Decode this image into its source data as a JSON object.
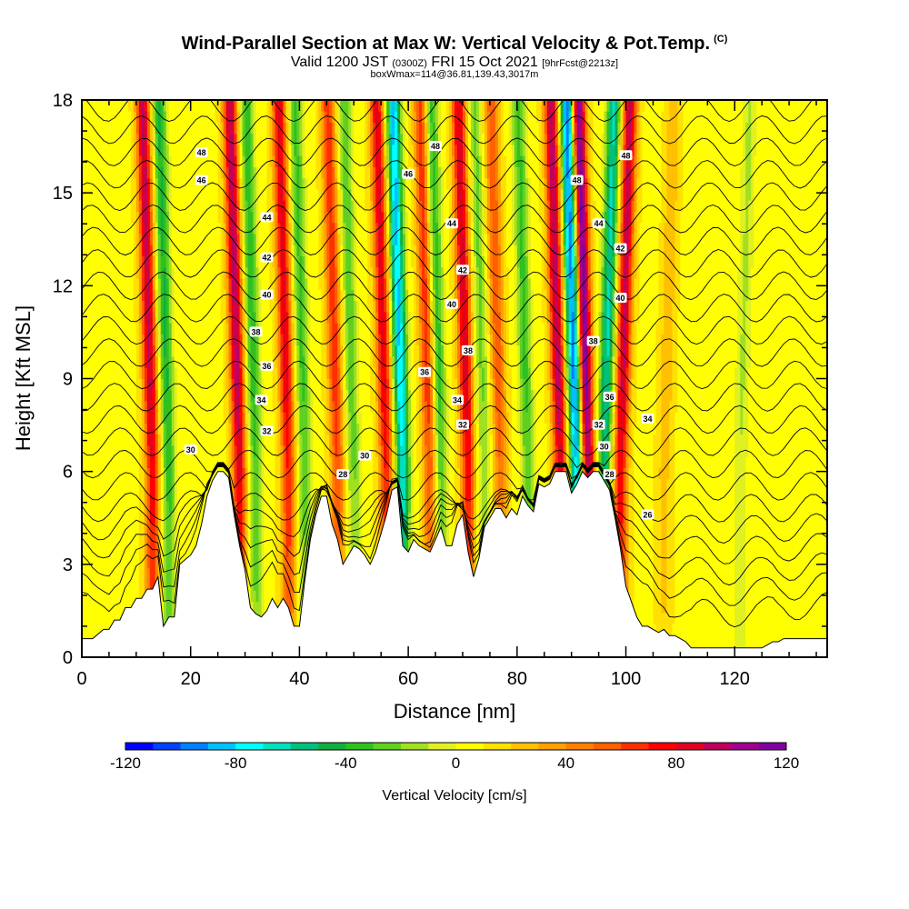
{
  "header": {
    "title": "Wind-Parallel Section at Max W: Vertical Velocity & Pot.Temp.",
    "title_mark": "(C)",
    "valid_prefix": "Valid 1200 JST",
    "valid_utc": "(0300Z)",
    "valid_date": "FRI 15 Oct 2021",
    "valid_fcst": "[9hrFcst@2213z]",
    "box_info": "boxWmax=114@36.81,139.43,3017m"
  },
  "chart_data": {
    "type": "heatmap",
    "xlabel": "Distance [nm]",
    "ylabel": "Height [Kft MSL]",
    "xlim": [
      0,
      137
    ],
    "ylim": [
      0,
      18
    ],
    "x_ticks": [
      "0",
      "20",
      "40",
      "60",
      "80",
      "100",
      "120"
    ],
    "y_ticks": [
      "0",
      "3",
      "6",
      "9",
      "12",
      "15",
      "18"
    ],
    "terrain": [
      [
        0,
        0.6
      ],
      [
        1,
        0.6
      ],
      [
        2,
        0.6
      ],
      [
        4,
        0.9
      ],
      [
        5,
        0.9
      ],
      [
        6,
        1.2
      ],
      [
        7,
        1.2
      ],
      [
        8,
        1.6
      ],
      [
        9,
        1.6
      ],
      [
        10,
        1.9
      ],
      [
        11,
        1.9
      ],
      [
        12,
        2.2
      ],
      [
        13,
        2.2
      ],
      [
        14,
        2.6
      ],
      [
        15,
        1
      ],
      [
        16,
        1.3
      ],
      [
        17,
        1.3
      ],
      [
        18,
        3
      ],
      [
        20,
        3.3
      ],
      [
        21,
        3.6
      ],
      [
        22,
        4.3
      ],
      [
        23,
        5.2
      ],
      [
        24,
        5.7
      ],
      [
        25,
        6
      ],
      [
        26,
        6
      ],
      [
        27,
        5.8
      ],
      [
        28,
        4.6
      ],
      [
        29,
        3.6
      ],
      [
        30,
        2.8
      ],
      [
        31,
        1.6
      ],
      [
        32,
        1.4
      ],
      [
        33,
        1.3
      ],
      [
        34,
        1.5
      ],
      [
        35,
        1.9
      ],
      [
        36,
        1.6
      ],
      [
        37,
        1.9
      ],
      [
        38,
        1.6
      ],
      [
        39,
        1
      ],
      [
        40,
        1
      ],
      [
        41,
        2.5
      ],
      [
        42,
        3.8
      ],
      [
        43,
        4.6
      ],
      [
        44,
        5.2
      ],
      [
        45,
        5.2
      ],
      [
        46,
        4.3
      ],
      [
        47,
        3.8
      ],
      [
        48,
        3
      ],
      [
        49,
        3.3
      ],
      [
        50,
        3.6
      ],
      [
        51,
        3.5
      ],
      [
        52,
        3.3
      ],
      [
        53,
        3
      ],
      [
        54,
        3.4
      ],
      [
        55,
        4
      ],
      [
        56,
        4.6
      ],
      [
        57,
        5.4
      ],
      [
        58,
        5.5
      ],
      [
        59,
        3.6
      ],
      [
        60,
        3.4
      ],
      [
        61,
        3.8
      ],
      [
        62,
        3.6
      ],
      [
        63,
        3.5
      ],
      [
        64,
        3.4
      ],
      [
        65,
        3.8
      ],
      [
        66,
        4.2
      ],
      [
        67,
        3.6
      ],
      [
        68,
        3.6
      ],
      [
        69,
        4.3
      ],
      [
        70,
        4.6
      ],
      [
        71,
        3.4
      ],
      [
        72,
        2.6
      ],
      [
        73,
        3.2
      ],
      [
        74,
        4.2
      ],
      [
        75,
        4.5
      ],
      [
        76,
        4.8
      ],
      [
        77,
        4.8
      ],
      [
        78,
        4.5
      ],
      [
        79,
        4.8
      ],
      [
        80,
        4.6
      ],
      [
        81,
        5.2
      ],
      [
        82,
        4.9
      ],
      [
        83,
        4.7
      ],
      [
        84,
        5.6
      ],
      [
        85,
        5.5
      ],
      [
        86,
        5.6
      ],
      [
        87,
        6
      ],
      [
        88,
        6
      ],
      [
        89,
        6
      ],
      [
        90,
        5.3
      ],
      [
        91,
        5.6
      ],
      [
        92,
        6
      ],
      [
        93,
        5.8
      ],
      [
        94,
        6
      ],
      [
        95,
        6
      ],
      [
        96,
        5.7
      ],
      [
        97,
        5.4
      ],
      [
        98,
        4.5
      ],
      [
        99,
        3.5
      ],
      [
        100,
        2.3
      ],
      [
        101,
        1.8
      ],
      [
        102,
        1.3
      ],
      [
        103,
        1
      ],
      [
        104,
        1
      ],
      [
        105,
        0.9
      ],
      [
        106,
        0.8
      ],
      [
        107,
        0.9
      ],
      [
        108,
        0.7
      ],
      [
        109,
        0.7
      ],
      [
        110,
        0.6
      ],
      [
        111,
        0.5
      ],
      [
        112,
        0.3
      ],
      [
        113,
        0.3
      ],
      [
        114,
        0.3
      ],
      [
        115,
        0.3
      ],
      [
        120,
        0.3
      ],
      [
        125,
        0.3
      ],
      [
        126,
        0.4
      ],
      [
        127,
        0.5
      ],
      [
        128,
        0.5
      ],
      [
        129,
        0.6
      ],
      [
        137,
        0.6
      ]
    ],
    "w_bands": [
      {
        "x": 13,
        "w": 85
      },
      {
        "x": 16,
        "w": -50
      },
      {
        "x": 29,
        "w": 90
      },
      {
        "x": 32,
        "w": -45
      },
      {
        "x": 38,
        "w": 75
      },
      {
        "x": 41,
        "w": -40
      },
      {
        "x": 47,
        "w": 60
      },
      {
        "x": 50,
        "w": -35
      },
      {
        "x": 56,
        "w": 75
      },
      {
        "x": 59,
        "w": -90
      },
      {
        "x": 64,
        "w": 60
      },
      {
        "x": 66,
        "w": -45
      },
      {
        "x": 71,
        "w": 80
      },
      {
        "x": 74,
        "w": -30
      },
      {
        "x": 77,
        "w": 50
      },
      {
        "x": 82,
        "w": -40
      },
      {
        "x": 88,
        "w": 90
      },
      {
        "x": 91,
        "w": -110
      },
      {
        "x": 93,
        "w": 114
      },
      {
        "x": 96,
        "w": -70
      },
      {
        "x": 99,
        "w": 85
      },
      {
        "x": 107,
        "w": 20
      },
      {
        "x": 121,
        "w": -20
      }
    ],
    "theta_contours": [
      26,
      27,
      28,
      29,
      30,
      31,
      32,
      33,
      34,
      35,
      36,
      37,
      38,
      39,
      40,
      41,
      42,
      43,
      44,
      45,
      46,
      47,
      48,
      49
    ],
    "contour_labels": [
      {
        "t": "48",
        "x": 22,
        "y": 16.3
      },
      {
        "t": "46",
        "x": 22,
        "y": 15.4
      },
      {
        "t": "44",
        "x": 34,
        "y": 14.2
      },
      {
        "t": "42",
        "x": 34,
        "y": 12.9
      },
      {
        "t": "40",
        "x": 34,
        "y": 11.7
      },
      {
        "t": "38",
        "x": 32,
        "y": 10.5
      },
      {
        "t": "36",
        "x": 34,
        "y": 9.4
      },
      {
        "t": "34",
        "x": 33,
        "y": 8.3
      },
      {
        "t": "32",
        "x": 34,
        "y": 7.3
      },
      {
        "t": "30",
        "x": 20,
        "y": 6.7
      },
      {
        "t": "28",
        "x": 48,
        "y": 5.9
      },
      {
        "t": "30",
        "x": 52,
        "y": 6.5
      },
      {
        "t": "46",
        "x": 60,
        "y": 15.6
      },
      {
        "t": "48",
        "x": 65,
        "y": 16.5
      },
      {
        "t": "44",
        "x": 68,
        "y": 14.0
      },
      {
        "t": "42",
        "x": 70,
        "y": 12.5
      },
      {
        "t": "40",
        "x": 68,
        "y": 11.4
      },
      {
        "t": "38",
        "x": 71,
        "y": 9.9
      },
      {
        "t": "36",
        "x": 63,
        "y": 9.2
      },
      {
        "t": "34",
        "x": 69,
        "y": 8.3
      },
      {
        "t": "32",
        "x": 70,
        "y": 7.5
      },
      {
        "t": "48",
        "x": 91,
        "y": 15.4
      },
      {
        "t": "44",
        "x": 95,
        "y": 14.0
      },
      {
        "t": "42",
        "x": 99,
        "y": 13.2
      },
      {
        "t": "40",
        "x": 99,
        "y": 11.6
      },
      {
        "t": "38",
        "x": 94,
        "y": 10.2
      },
      {
        "t": "36",
        "x": 97,
        "y": 8.4
      },
      {
        "t": "34",
        "x": 104,
        "y": 7.7
      },
      {
        "t": "32",
        "x": 95,
        "y": 7.5
      },
      {
        "t": "30",
        "x": 96,
        "y": 6.8
      },
      {
        "t": "28",
        "x": 97,
        "y": 5.9
      },
      {
        "t": "26",
        "x": 104,
        "y": 4.6
      },
      {
        "t": "48",
        "x": 100,
        "y": 16.2
      }
    ],
    "colorbar": {
      "title": "Vertical Velocity [cm/s]",
      "labels": [
        "-120",
        "-80",
        "-40",
        "0",
        "40",
        "80",
        "120"
      ],
      "colors": [
        "#0000ff",
        "#0040ff",
        "#0080ff",
        "#00c0ff",
        "#00ffff",
        "#00e0c0",
        "#00c080",
        "#10b040",
        "#30c020",
        "#60d020",
        "#a0e020",
        "#e0f020",
        "#ffff00",
        "#ffe000",
        "#ffc000",
        "#ffa000",
        "#ff8000",
        "#ff6000",
        "#ff3000",
        "#ff0000",
        "#e00020",
        "#c00060",
        "#a00090",
        "#8000a0"
      ]
    }
  }
}
